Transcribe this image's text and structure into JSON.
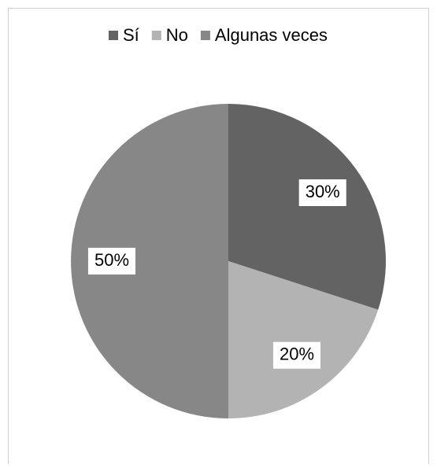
{
  "chart_data": {
    "type": "pie",
    "categories": [
      "Sí",
      "No",
      "Algunas veces"
    ],
    "values": [
      30,
      20,
      50
    ],
    "value_labels": [
      "30%",
      "20%",
      "50%"
    ],
    "colors": [
      "#636363",
      "#b3b3b3",
      "#878787"
    ],
    "legend": "top"
  }
}
